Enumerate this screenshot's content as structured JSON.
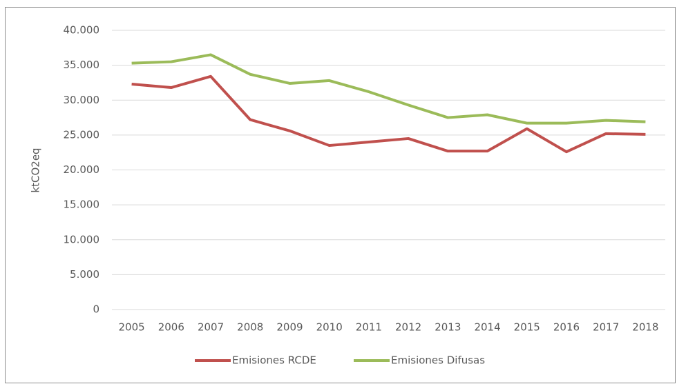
{
  "chart_data": {
    "type": "line",
    "y_label": "ktCO2eq",
    "categories": [
      "2005",
      "2006",
      "2007",
      "2008",
      "2009",
      "2010",
      "2011",
      "2012",
      "2013",
      "2014",
      "2015",
      "2016",
      "2017",
      "2018"
    ],
    "series": [
      {
        "name": "Emisiones RCDE",
        "color": "#c0504d",
        "values": [
          32300,
          31800,
          33400,
          27200,
          25600,
          23500,
          24000,
          24500,
          22700,
          22700,
          25900,
          22600,
          25200,
          25100
        ]
      },
      {
        "name": "Emisiones Difusas",
        "color": "#9bbb59",
        "values": [
          35300,
          35500,
          36500,
          33700,
          32400,
          32800,
          31200,
          29300,
          27500,
          27900,
          26700,
          26700,
          27100,
          26900
        ]
      }
    ],
    "ylim": [
      0,
      40000
    ],
    "yticks": [
      {
        "value": 0,
        "label": "0"
      },
      {
        "value": 5000,
        "label": "5.000"
      },
      {
        "value": 10000,
        "label": "10.000"
      },
      {
        "value": 15000,
        "label": "15.000"
      },
      {
        "value": 20000,
        "label": "20.000"
      },
      {
        "value": 25000,
        "label": "25.000"
      },
      {
        "value": 30000,
        "label": "30.000"
      },
      {
        "value": 35000,
        "label": "35.000"
      },
      {
        "value": 40000,
        "label": "40.000"
      }
    ],
    "grid": true,
    "legend": "bottom"
  }
}
